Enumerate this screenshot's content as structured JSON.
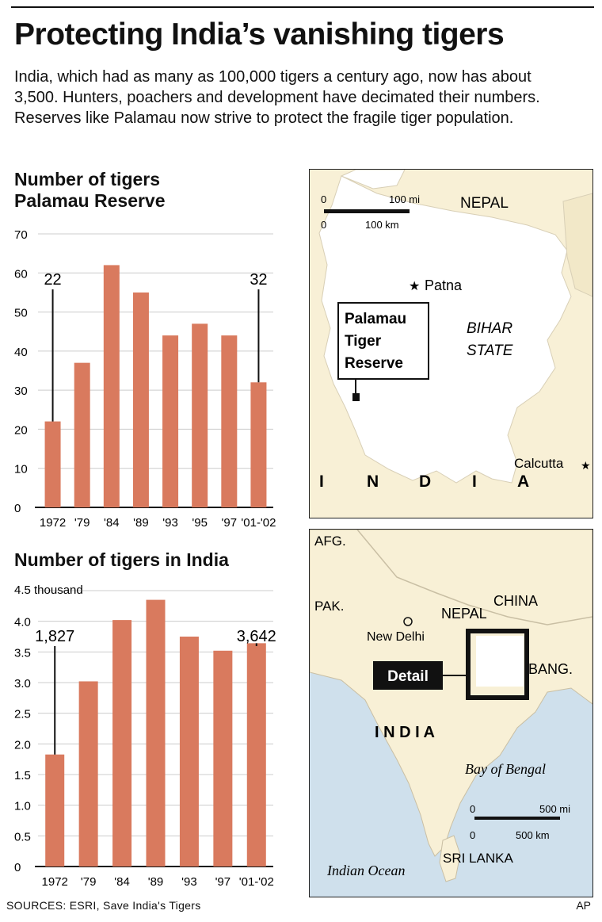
{
  "header": {
    "title": "Protecting India’s vanishing tigers",
    "intro": "India, which had as many as 100,000 tigers a century ago, now has about 3,500. Hunters, poachers and development have decimated their numbers. Reserves like Palamau now strive to protect the fragile tiger population."
  },
  "chart_data": [
    {
      "type": "bar",
      "title": "Number of tigers Palamau Reserve",
      "title_lines": [
        "Number of tigers",
        "Palamau Reserve"
      ],
      "categories": [
        "1972",
        "'79",
        "'84",
        "'89",
        "'93",
        "'95",
        "'97",
        "'01-'02"
      ],
      "values": [
        22,
        37,
        62,
        55,
        44,
        47,
        44,
        32
      ],
      "ylim": [
        0,
        70
      ],
      "yticks": [
        0,
        10,
        20,
        30,
        40,
        50,
        60,
        70
      ],
      "annotations": [
        {
          "category": "1972",
          "label": "22"
        },
        {
          "category": "'01-'02",
          "label": "32"
        }
      ],
      "bar_color": "#d97a5e",
      "grid": true
    },
    {
      "type": "bar",
      "title": "Number of tigers in India",
      "title_lines": [
        "Number of tigers in India"
      ],
      "categories": [
        "1972",
        "'79",
        "'84",
        "'89",
        "'93",
        "'97",
        "'01-'02"
      ],
      "values": [
        1.827,
        3.02,
        4.02,
        4.35,
        3.75,
        3.52,
        3.642
      ],
      "ylim": [
        0,
        4.5
      ],
      "yticks": [
        0,
        0.5,
        1.0,
        1.5,
        2.0,
        2.5,
        3.0,
        3.5,
        4.0,
        4.5
      ],
      "ytick_labels": [
        "0",
        "0.5",
        "1.0",
        "1.5",
        "2.0",
        "2.5",
        "3.0",
        "3.5",
        "4.0",
        "4.5 thousand"
      ],
      "annotations": [
        {
          "category": "1972",
          "label": "1,827"
        },
        {
          "category": "'01-'02",
          "label": "3,642"
        }
      ],
      "bar_color": "#d97a5e",
      "grid": true
    }
  ],
  "map_detail": {
    "scale_top": "100 mi",
    "scale_bottom": "100 km",
    "scale_zero": "0",
    "nepal": "NEPAL",
    "patna": "Patna",
    "state_line1": "BIHAR",
    "state_line2": "STATE",
    "reserve_line1": "Palamau",
    "reserve_line2": "Tiger",
    "reserve_line3": "Reserve",
    "calcutta": "Calcutta",
    "india_letters": [
      "I",
      "N",
      "D",
      "I",
      "A"
    ]
  },
  "map_india": {
    "afg": "AFG.",
    "pak": "PAK.",
    "china": "CHINA",
    "nepal": "NEPAL",
    "new_delhi": "New Delhi",
    "detail": "Detail",
    "bang": "BANG.",
    "india": "I N D I A",
    "bay": "Bay of Bengal",
    "ocean": "Indian Ocean",
    "sri_lanka": "SRI LANKA",
    "scale_top": "500 mi",
    "scale_bottom": "500 km",
    "scale_zero": "0"
  },
  "colors": {
    "land": "#f8f0d6",
    "water": "#cfe0ec",
    "focus": "#ffffff",
    "bar": "#d97a5e"
  },
  "footer": {
    "sources": "SOURCES: ESRI, Save India's Tigers",
    "credit": "AP"
  }
}
